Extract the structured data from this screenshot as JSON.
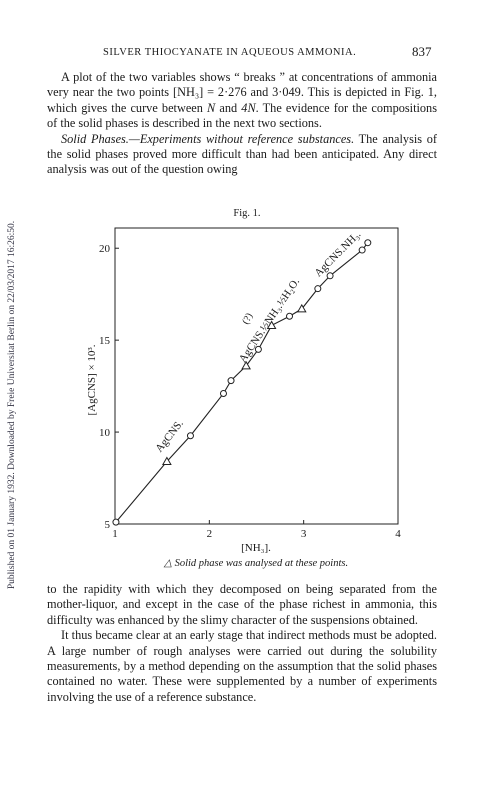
{
  "header": {
    "running_title": "SILVER THIOCYANATE IN AQUEOUS AMMONIA.",
    "page_number": "837"
  },
  "side_note": "Published on 01 January 1932. Downloaded by Freie Universitat Berlin on 22/03/2017 16:26:50.",
  "paragraphs_top": [
    [
      "A plot of the two variables shows “ breaks ” at concentrations of ammonia very near the two points [NH₃] = 2·276 and 3·049. This is depicted in Fig. 1, which gives the curve between ",
      "N",
      " and ",
      "4N",
      ". The evidence for the compositions of the solid phases is described in the next two sections."
    ],
    [
      "Solid Phases.—Experiments without reference substances.",
      " The analysis of the solid phases proved more difficult than had been anticipated. Any direct analysis was out of the question owing"
    ]
  ],
  "paragraphs_bottom": [
    "to the rapidity with which they decomposed on being separated from the mother-liquor, and except in the case of the phase richest in ammonia, this difficulty was enhanced by the slimy character of the suspensions obtained.",
    "It thus became clear at an early stage that indirect methods must be adopted. A large number of rough analyses were carried out during the solubility measurements, by a method depending on the assumption that the solid phases contained no water. These were supplemented by a number of experiments involving the use of a reference substance."
  ],
  "chart_data": {
    "type": "line",
    "title": "Fig. 1.",
    "x_label": "[NH₃].",
    "y_label": "[AgCNS] × 10³.",
    "caption": "△ Solid phase was analysed at these points.",
    "x": [
      1.01,
      1.55,
      1.8,
      2.15,
      2.23,
      2.39,
      2.52,
      2.66,
      2.85,
      2.98,
      3.15,
      3.28,
      3.62,
      3.68
    ],
    "values": [
      5.1,
      8.4,
      9.8,
      12.1,
      12.8,
      13.6,
      14.5,
      15.8,
      16.3,
      16.7,
      17.8,
      18.5,
      19.9,
      20.3
    ],
    "markers": [
      "circle",
      "triangle",
      "circle",
      "circle",
      "circle",
      "triangle",
      "circle",
      "triangle",
      "circle",
      "triangle",
      "circle",
      "circle",
      "circle",
      "circle"
    ],
    "color": "#222222",
    "xlim": [
      1,
      4
    ],
    "ylim": [
      5,
      21.1
    ],
    "xticks": [
      1,
      2,
      3,
      4
    ],
    "yticks": [
      5,
      10,
      15,
      20
    ],
    "annotations": [
      "AgCNS.",
      "(?)",
      "AgCNS.½NH₃.½H₂O.",
      "AgCNS.NH₃."
    ]
  }
}
